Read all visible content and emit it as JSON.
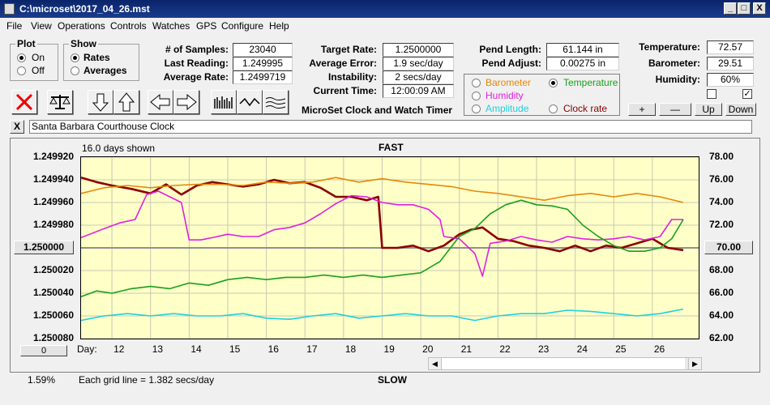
{
  "window": {
    "title": "C:\\microset\\2017_04_26.mst"
  },
  "menu": [
    "File",
    "View",
    "Operations",
    "Controls",
    "Watches",
    "GPS",
    "Configure",
    "Help"
  ],
  "plot_group": {
    "title": "Plot",
    "options": [
      "On",
      "Off"
    ],
    "selected": "On"
  },
  "show_group": {
    "title": "Show",
    "options": [
      "Rates",
      "Averages"
    ],
    "selected": "Rates"
  },
  "stats": {
    "samples_label": "# of Samples:",
    "samples": "23040",
    "last_reading_label": "Last Reading:",
    "last_reading": "1.249995",
    "average_rate_label": "Average Rate:",
    "average_rate": "1.2499719"
  },
  "rates": {
    "target_rate_label": "Target Rate:",
    "target_rate": "1.2500000",
    "average_error_label": "Average Error:",
    "average_error": "1.9 sec/day",
    "instability_label": "Instability:",
    "instability": "2 secs/day",
    "current_time_label": "Current Time:",
    "current_time": "12:00:09 AM"
  },
  "app_caption": "MicroSet Clock and Watch Timer",
  "pendulum": {
    "length_label": "Pend Length:",
    "length": "61.144 in",
    "adjust_label": "Pend Adjust:",
    "adjust": "0.00275 in"
  },
  "overlay": {
    "options": [
      {
        "label": "Barometer",
        "color": "#e8870a",
        "selected": false
      },
      {
        "label": "Temperature",
        "color": "#1aa01a",
        "selected": true
      },
      {
        "label": "Humidity",
        "color": "#e020e0",
        "selected": false
      },
      {
        "label": "Clock rate",
        "color": "#8b0000",
        "selected": false
      },
      {
        "label": "Amplitude",
        "color": "#20d0e0",
        "selected": false
      }
    ]
  },
  "environment": {
    "temperature_label": "Temperature:",
    "temperature": "72.57",
    "barometer_label": "Barometer:",
    "barometer": "29.51",
    "humidity_label": "Humidity:",
    "humidity": "60%"
  },
  "scale_buttons": {
    "plus": "+",
    "minus": "—",
    "up": "Up",
    "down": "Down"
  },
  "clock_name": "Santa Barbara Courthouse Clock",
  "close_x": "X",
  "chart_data": {
    "type": "line",
    "title": "FAST",
    "bottom_label": "SLOW",
    "days_shown": "16.0 days shown",
    "grid_note": "Each grid line = 1.382 secs/day",
    "percent": "1.59%",
    "left_ref_button": "1.250000",
    "right_ref_button": "70.00",
    "scroll_button": "0",
    "day_label": "Day:",
    "x_ticks": [
      12,
      13,
      14,
      15,
      16,
      17,
      18,
      19,
      20,
      21,
      22,
      23,
      24,
      25,
      26
    ],
    "xlim": [
      11.2,
      27.2
    ],
    "left_ticks": [
      "1.249920",
      "1.249940",
      "1.249960",
      "1.249980",
      "1.250000",
      "1.250020",
      "1.250040",
      "1.250060",
      "1.250080"
    ],
    "ylim_left": [
      1.24992,
      1.25008
    ],
    "right_ticks": [
      "78.00",
      "76.00",
      "74.00",
      "72.00",
      "70.00",
      "68.00",
      "66.00",
      "64.00",
      "62.00"
    ],
    "ylim_right": [
      78,
      62
    ],
    "series": [
      {
        "color": "#8b0000",
        "x": [
          11.2,
          11.6,
          12,
          12.5,
          13,
          13.4,
          13.8,
          14.2,
          14.6,
          15,
          15.4,
          15.8,
          16.2,
          16.6,
          17,
          17.4,
          17.8,
          18.2,
          18.6,
          18.9,
          19,
          19.4,
          19.8,
          20.2,
          20.6,
          21,
          21.3,
          21.6,
          22,
          22.4,
          22.8,
          23.2,
          23.6,
          24,
          24.4,
          24.8,
          25.2,
          25.6,
          26,
          26.4,
          26.8
        ],
        "y": [
          1.249938,
          1.249942,
          1.249945,
          1.249948,
          1.249952,
          1.249944,
          1.249953,
          1.249945,
          1.249942,
          1.249944,
          1.249946,
          1.249944,
          1.24994,
          1.249943,
          1.249942,
          1.249947,
          1.249955,
          1.249955,
          1.249958,
          1.249955,
          1.25,
          1.25,
          1.249998,
          1.250003,
          1.249998,
          1.249988,
          1.249984,
          1.249982,
          1.249992,
          1.249994,
          1.249998,
          1.25,
          1.250003,
          1.249998,
          1.250003,
          1.249998,
          1.25,
          1.249996,
          1.249992,
          1.25,
          1.250002
        ]
      },
      {
        "color": "#e8870a",
        "x": [
          11.2,
          11.8,
          12.4,
          13,
          13.6,
          14.2,
          14.8,
          15.4,
          16,
          16.6,
          17.2,
          17.8,
          18.4,
          19,
          19.6,
          20.2,
          20.8,
          21.4,
          22,
          22.6,
          23.2,
          23.8,
          24.4,
          25,
          25.6,
          26.2,
          26.8
        ],
        "y": [
          1.249952,
          1.249947,
          1.249945,
          1.249947,
          1.249945,
          1.249944,
          1.249944,
          1.249945,
          1.249942,
          1.249943,
          1.249942,
          1.249938,
          1.249942,
          1.249939,
          1.249942,
          1.249944,
          1.249946,
          1.24995,
          1.249952,
          1.249955,
          1.249958,
          1.249954,
          1.249952,
          1.249955,
          1.249952,
          1.249955,
          1.24996
        ]
      },
      {
        "color": "#e020e0",
        "x": [
          11.2,
          11.8,
          12.2,
          12.6,
          12.9,
          13.2,
          13.5,
          13.8,
          14,
          14.3,
          14.6,
          15,
          15.4,
          15.8,
          16.2,
          16.6,
          17,
          17.4,
          17.8,
          18.2,
          18.6,
          19,
          19.4,
          19.8,
          20.2,
          20.5,
          20.6,
          21,
          21.4,
          21.6,
          21.8,
          22.2,
          22.6,
          23,
          23.4,
          23.8,
          24.2,
          24.6,
          25,
          25.4,
          25.8,
          26.2,
          26.5,
          26.8
        ],
        "y": [
          1.249991,
          1.249983,
          1.249978,
          1.249975,
          1.249953,
          1.24995,
          1.249955,
          1.24996,
          1.249993,
          1.249993,
          1.249991,
          1.249988,
          1.24999,
          1.24999,
          1.249984,
          1.249982,
          1.249978,
          1.24997,
          1.249961,
          1.249954,
          1.249955,
          1.24996,
          1.249962,
          1.249962,
          1.249966,
          1.249975,
          1.24999,
          1.249992,
          1.250005,
          1.250025,
          1.249996,
          1.249994,
          1.24999,
          1.249993,
          1.249995,
          1.24999,
          1.249992,
          1.249993,
          1.249992,
          1.24999,
          1.249993,
          1.24999,
          1.249975,
          1.249975
        ]
      },
      {
        "color": "#1aa01a",
        "x": [
          11.2,
          11.6,
          12,
          12.5,
          13,
          13.5,
          14,
          14.5,
          15,
          15.5,
          16,
          16.5,
          17,
          17.5,
          18,
          18.5,
          19,
          19.5,
          20,
          20.5,
          21,
          21.4,
          21.8,
          22.2,
          22.6,
          23,
          23.4,
          23.8,
          24.2,
          24.6,
          25,
          25.4,
          25.8,
          26.2,
          26.5,
          26.8
        ],
        "y": [
          1.250043,
          1.250038,
          1.25004,
          1.250036,
          1.250034,
          1.250036,
          1.250031,
          1.250033,
          1.250028,
          1.250026,
          1.250028,
          1.250026,
          1.250026,
          1.250024,
          1.250026,
          1.250024,
          1.250026,
          1.250024,
          1.250022,
          1.250012,
          1.24999,
          1.249983,
          1.24997,
          1.249962,
          1.249958,
          1.249962,
          1.249963,
          1.249966,
          1.24998,
          1.24999,
          1.249998,
          1.250003,
          1.250003,
          1.25,
          1.249992,
          1.249975
        ]
      },
      {
        "color": "#20d0e0",
        "x": [
          11.2,
          11.8,
          12.4,
          13,
          13.6,
          14.2,
          14.8,
          15.4,
          16,
          16.6,
          17.2,
          17.8,
          18.4,
          19,
          19.6,
          20.2,
          20.8,
          21.4,
          22,
          22.6,
          23.2,
          23.8,
          24.4,
          25,
          25.6,
          26.2,
          26.8
        ],
        "y": [
          1.250064,
          1.25006,
          1.250058,
          1.25006,
          1.250058,
          1.25006,
          1.25006,
          1.250058,
          1.250062,
          1.250063,
          1.25006,
          1.250058,
          1.250062,
          1.25006,
          1.250058,
          1.25006,
          1.25006,
          1.250064,
          1.25006,
          1.250058,
          1.250058,
          1.250055,
          1.250056,
          1.250058,
          1.25006,
          1.250058,
          1.250054
        ]
      }
    ]
  }
}
